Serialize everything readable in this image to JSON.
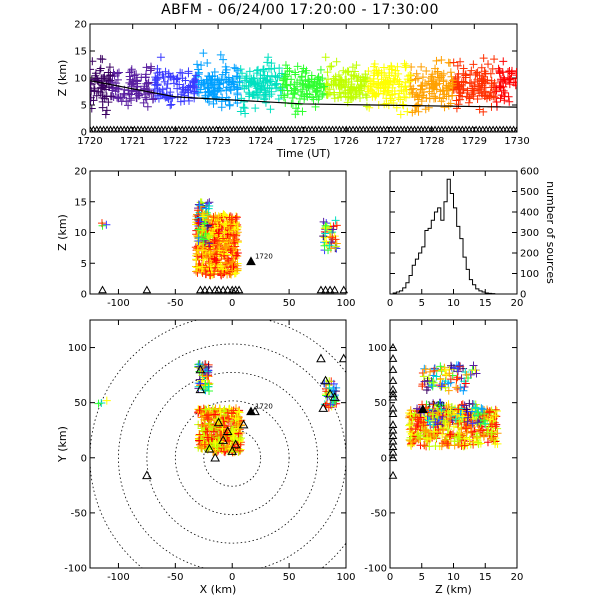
{
  "figure": {
    "title": "ABFM - 06/24/00 17:20:00 - 17:30:00"
  },
  "colors": {
    "rainbow": [
      "#3a0060",
      "#5a1fa0",
      "#3a3aff",
      "#00a0ff",
      "#00e0c0",
      "#30ff30",
      "#c0ff00",
      "#ffff00",
      "#ffa000",
      "#ff3000",
      "#ff0000"
    ],
    "axis": "#000000",
    "station_marker": "#000000"
  },
  "chart_data": [
    {
      "id": "time-height",
      "type": "scatter",
      "xlabel": "Time (UT)",
      "ylabel": "Z (km)",
      "xlim": [
        1720,
        1730
      ],
      "ylim": [
        0,
        20
      ],
      "xticks": [
        1720,
        1721,
        1722,
        1723,
        1724,
        1725,
        1726,
        1727,
        1728,
        1729,
        1730
      ],
      "yticks": [
        0,
        5,
        10,
        15,
        20
      ],
      "marker": "+",
      "color_by": "time",
      "source_height_band_km": [
        3,
        14
      ],
      "trend_line": [
        [
          1720,
          9.5
        ],
        [
          1722,
          6.5
        ],
        [
          1725,
          5.2
        ],
        [
          1730,
          4.6
        ]
      ],
      "stations_marker": "triangle",
      "stations_z_km": 0
    },
    {
      "id": "x-z",
      "type": "scatter",
      "xlabel": "",
      "ylabel": "Z (km)",
      "xlim": [
        -125,
        100
      ],
      "ylim": [
        0,
        20
      ],
      "xticks": [
        -100,
        -50,
        0,
        50,
        100
      ],
      "yticks": [
        0,
        5,
        10,
        15,
        20
      ],
      "marker": "+",
      "color_by": "time",
      "source_clusters": [
        {
          "x": [
            -32,
            5
          ],
          "z": [
            3,
            13
          ]
        },
        {
          "x": [
            -30,
            -20
          ],
          "z": [
            8,
            15
          ]
        },
        {
          "x": [
            80,
            92
          ],
          "z": [
            7,
            12
          ]
        },
        {
          "x": [
            -115,
            -110
          ],
          "z": [
            11,
            12
          ]
        }
      ],
      "annotation": {
        "text": "1720",
        "x": 20,
        "z": 5.3
      },
      "stations_x_km": [
        -114,
        -75,
        -28,
        -24,
        -20,
        -15,
        -12,
        -8,
        -4,
        0,
        3,
        6,
        78,
        82,
        86,
        90,
        98
      ]
    },
    {
      "id": "height-histogram",
      "type": "bar",
      "xlabel": "",
      "ylabel": "number of sources",
      "xlim": [
        0,
        20
      ],
      "ylim": [
        0,
        600
      ],
      "xticks": [
        0,
        5,
        10,
        15,
        20
      ],
      "yticks": [
        0,
        100,
        200,
        300,
        400,
        500,
        600
      ],
      "bin_width_km": 0.5,
      "bins_start": [
        0,
        0.5,
        1,
        1.5,
        2,
        2.5,
        3,
        3.5,
        4,
        4.5,
        5,
        5.5,
        6,
        6.5,
        7,
        7.5,
        8,
        8.5,
        9,
        9.5,
        10,
        10.5,
        11,
        11.5,
        12,
        12.5,
        13,
        13.5,
        14,
        14.5,
        15,
        15.5,
        16,
        16.5,
        17,
        17.5,
        18,
        18.5,
        19,
        19.5
      ],
      "values": [
        0,
        5,
        10,
        15,
        30,
        55,
        90,
        140,
        170,
        200,
        230,
        310,
        320,
        360,
        400,
        420,
        360,
        450,
        560,
        490,
        420,
        330,
        270,
        180,
        120,
        70,
        45,
        25,
        15,
        10,
        5,
        3,
        2,
        0,
        0,
        0,
        0,
        0,
        0,
        0
      ]
    },
    {
      "id": "plan-view",
      "type": "scatter",
      "xlabel": "X (km)",
      "ylabel": "Y (km)",
      "xlim": [
        -125,
        100
      ],
      "ylim": [
        -100,
        125
      ],
      "xticks": [
        -100,
        -50,
        0,
        50,
        100
      ],
      "yticks": [
        -100,
        -50,
        0,
        50,
        100
      ],
      "marker": "+",
      "color_by": "time",
      "range_rings_km": [
        25,
        50,
        75,
        100,
        125
      ],
      "ring_center": [
        0,
        0
      ],
      "source_clusters": [
        {
          "x": [
            -30,
            8
          ],
          "y": [
            5,
            45
          ]
        },
        {
          "x": [
            -30,
            -20
          ],
          "y": [
            60,
            85
          ]
        },
        {
          "x": [
            80,
            92
          ],
          "y": [
            45,
            70
          ]
        },
        {
          "x": [
            -118,
            -110
          ],
          "y": [
            48,
            52
          ]
        }
      ],
      "annotation": {
        "text": "1720",
        "x": 20,
        "y": 42
      },
      "stations": [
        [
          -75,
          -16
        ],
        [
          -28,
          80
        ],
        [
          -28,
          62
        ],
        [
          -20,
          8
        ],
        [
          -15,
          0
        ],
        [
          -8,
          16
        ],
        [
          -4,
          24
        ],
        [
          0,
          6
        ],
        [
          3,
          12
        ],
        [
          10,
          30
        ],
        [
          -12,
          32
        ],
        [
          20,
          42
        ],
        [
          78,
          90
        ],
        [
          82,
          70
        ],
        [
          86,
          58
        ],
        [
          90,
          55
        ],
        [
          80,
          45
        ],
        [
          98,
          90
        ]
      ]
    },
    {
      "id": "z-y",
      "type": "scatter",
      "xlabel": "Z (km)",
      "ylabel": "",
      "xlim": [
        0,
        20
      ],
      "ylim": [
        -100,
        125
      ],
      "xticks": [
        0,
        5,
        10,
        15,
        20
      ],
      "yticks": [
        -100,
        -50,
        0,
        50,
        100
      ],
      "marker": "+",
      "color_by": "time",
      "source_clusters": [
        {
          "z": [
            3,
            17
          ],
          "y": [
            10,
            45
          ]
        },
        {
          "z": [
            5,
            14
          ],
          "y": [
            60,
            85
          ]
        },
        {
          "z": [
            4,
            15
          ],
          "y": [
            30,
            50
          ]
        }
      ],
      "annotation": {
        "text": "1720",
        "z": 5.8,
        "y": 44
      },
      "stations_y_km": [
        -16,
        0,
        5,
        10,
        15,
        20,
        25,
        30,
        40,
        45,
        55,
        58,
        62,
        70,
        80,
        90,
        100
      ]
    }
  ]
}
